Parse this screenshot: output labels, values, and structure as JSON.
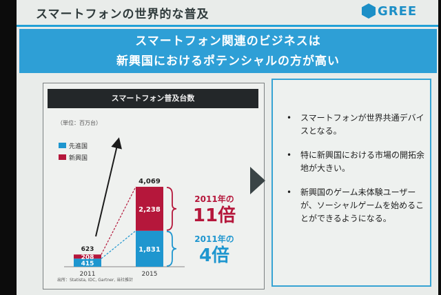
{
  "slide": {
    "title": "スマートフォンの世界的な普及",
    "logo_text": "GREE",
    "headline": [
      "スマートフォン関連のビジネスは",
      "新興国におけるポテンシャルの方が高い"
    ]
  },
  "chart": {
    "header": "スマートフォン普及台数",
    "unit": "（単位：百万台）",
    "source": "出所：Statista, IDC, Gartner, 当社推計",
    "multiplier_emerging": {
      "label": "2011年の",
      "value": "11倍"
    },
    "multiplier_developed": {
      "label": "2011年の",
      "value": "4倍"
    }
  },
  "chart_data": {
    "type": "bar",
    "stacked": true,
    "categories": [
      "2011",
      "2015"
    ],
    "series": [
      {
        "name": "先進国",
        "values": [
          415,
          1831
        ],
        "labels": [
          "415",
          "1,831"
        ],
        "color": "#1e96cf"
      },
      {
        "name": "新興国",
        "values": [
          208,
          2238
        ],
        "labels": [
          "208",
          "2,238"
        ],
        "color": "#b5173b"
      }
    ],
    "totals": [
      623,
      4069
    ],
    "total_labels": [
      "623",
      "4,069"
    ],
    "legend_position": "top-left"
  },
  "bullets": [
    "スマートフォンが世界共通デバイスとなる。",
    "特に新興国における市場の開拓余地が大きい。",
    "新興国のゲーム未体験ユーザーが、ソーシャルゲームを始めることができるようになる。"
  ],
  "colors": {
    "accent": "#2e9fd6",
    "developed": "#1e96cf",
    "emerging": "#b5173b",
    "chart_header": "#232729"
  }
}
